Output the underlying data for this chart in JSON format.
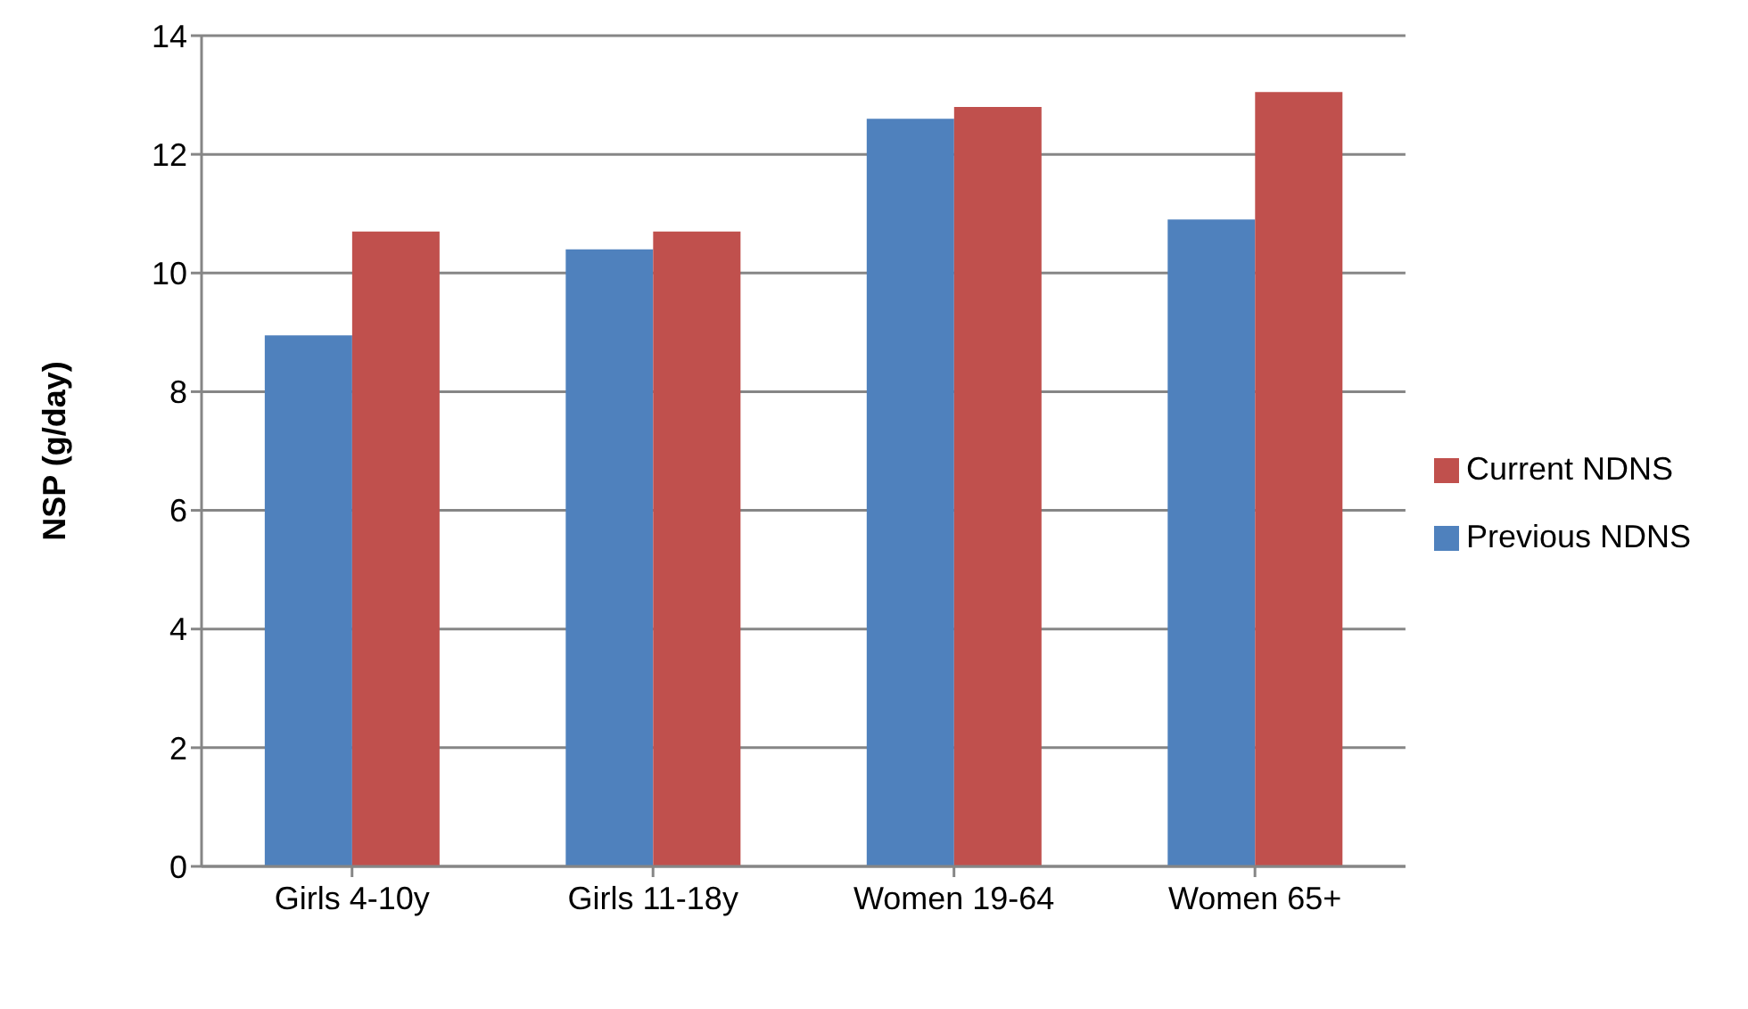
{
  "chart_data": {
    "type": "bar",
    "ylabel": "NSP (g/day)",
    "categories": [
      "Girls 4-10y",
      "Girls 11-18y",
      "Women 19-64",
      "Women 65+"
    ],
    "series": [
      {
        "name": "Previous NDNS",
        "color": "#4f81bd",
        "values": [
          8.95,
          10.4,
          12.6,
          10.9
        ]
      },
      {
        "name": "Current NDNS",
        "color": "#c0504d",
        "values": [
          10.7,
          10.7,
          12.8,
          13.05
        ]
      }
    ],
    "ylim": [
      0,
      14
    ],
    "yticks": [
      0,
      2,
      4,
      6,
      8,
      10,
      12,
      14
    ],
    "grid": "y",
    "legend": "right"
  }
}
